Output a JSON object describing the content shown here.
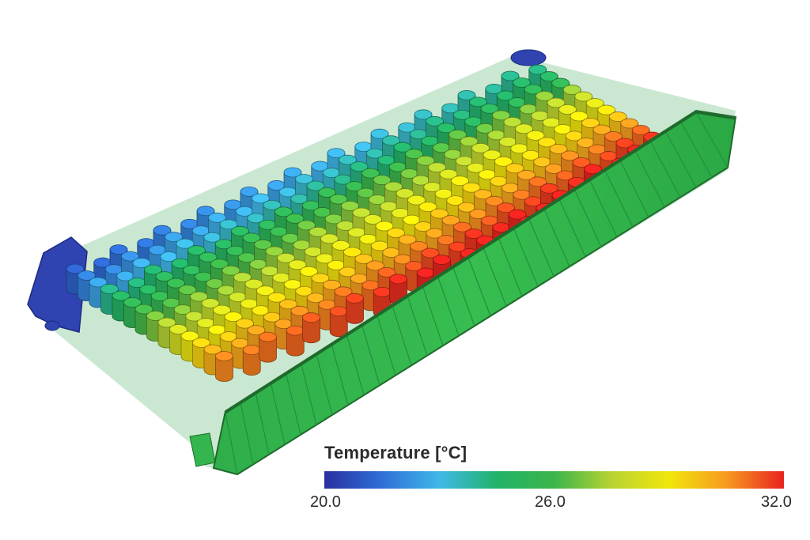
{
  "legend": {
    "title": "Temperature [°C]",
    "min_label": "20.0",
    "mid_label": "26.0",
    "max_label": "32.0",
    "min": 20.0,
    "max": 32.0,
    "colormap": [
      "#2a2fa0",
      "#2f6fd6",
      "#3fb8e8",
      "#21b36a",
      "#3ab54a",
      "#b8d432",
      "#f1e60b",
      "#f79a1f",
      "#e8231f"
    ]
  },
  "scene": {
    "frame_color": "#34b84a",
    "end_plate_color": "#2f44b0"
  }
}
